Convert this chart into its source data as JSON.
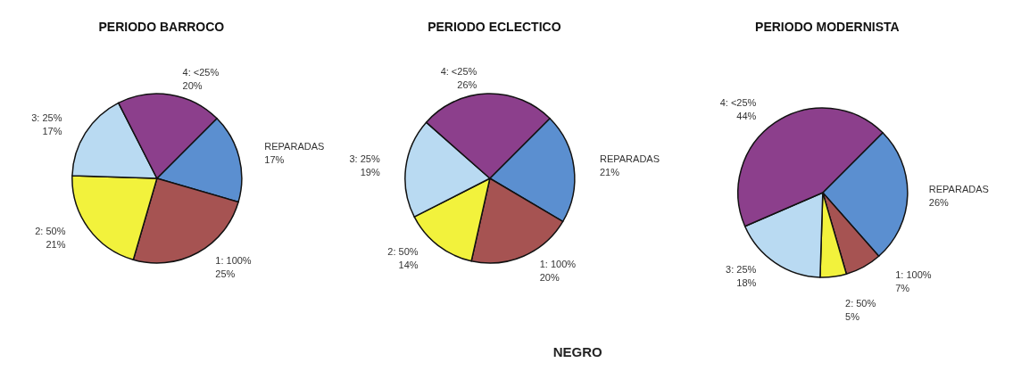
{
  "chart_data": [
    {
      "type": "pie",
      "title": "PERIODO BARROCO",
      "categories": [
        "REPARADAS",
        "1: 100%",
        "2: 50%",
        "3: 25%",
        "4: <25%"
      ],
      "values": [
        17,
        25,
        21,
        17,
        20
      ],
      "value_labels": [
        "17%",
        "25%",
        "21%",
        "17%",
        "20%"
      ],
      "colors": [
        "#5b8fd0",
        "#a65352",
        "#f2f23c",
        "#b9daf2",
        "#8c3f8c"
      ]
    },
    {
      "type": "pie",
      "title": "PERIODO ECLECTICO",
      "categories": [
        "REPARADAS",
        "1: 100%",
        "2: 50%",
        "3: 25%",
        "4: <25%"
      ],
      "values": [
        21,
        20,
        14,
        19,
        26
      ],
      "value_labels": [
        "21%",
        "20%",
        "14%",
        "19%",
        "26%"
      ],
      "colors": [
        "#5b8fd0",
        "#a65352",
        "#f2f23c",
        "#b9daf2",
        "#8c3f8c"
      ],
      "annotations": [
        "NEGRO"
      ]
    },
    {
      "type": "pie",
      "title": "PERIODO MODERNISTA",
      "categories": [
        "REPARADAS",
        "1: 100%",
        "2: 50%",
        "3: 25%",
        "4: <25%"
      ],
      "values": [
        26,
        7,
        5,
        18,
        44
      ],
      "value_labels": [
        "26%",
        "7%",
        "5%",
        "18%",
        "44%"
      ],
      "colors": [
        "#5b8fd0",
        "#a65352",
        "#f2f23c",
        "#b9daf2",
        "#8c3f8c"
      ]
    }
  ]
}
